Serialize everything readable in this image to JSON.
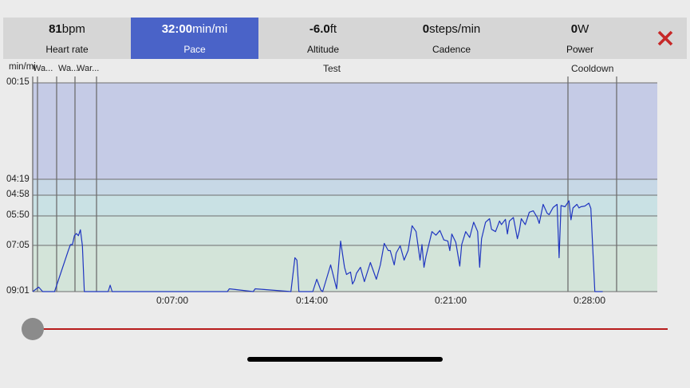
{
  "metrics": [
    {
      "value": "81",
      "unit": "bpm",
      "label": "Heart rate"
    },
    {
      "value": "32:00",
      "unit": "min/mi",
      "label": "Pace"
    },
    {
      "value": "-6.0",
      "unit": "ft",
      "label": "Altitude"
    },
    {
      "value": "0",
      "unit": "steps/min",
      "label": "Cadence"
    },
    {
      "value": "0",
      "unit": "W",
      "label": "Power"
    }
  ],
  "active_metric": "Pace",
  "close_icon": "close-x-icon",
  "colors": {
    "accent": "#4a63c8",
    "close": "#c62828",
    "line": "#1f35c0",
    "zone_top": "#c5cbe6",
    "zone_mid": "#c9e1e4",
    "zone_bottom": "#d3e4d9",
    "slider_track": "#b71c1c"
  },
  "chart": {
    "unit_label": "min/mi",
    "segment_labels": [
      "Wa...",
      "Wa...",
      "War...",
      "Test",
      "Cooldown"
    ],
    "y_ticks": [
      "00:15",
      "04:19",
      "04:58",
      "05:50",
      "07:05",
      "09:01"
    ],
    "x_ticks": [
      "0:07:00",
      "0:14:00",
      "0:21:00",
      "0:28:00"
    ]
  },
  "chart_data": {
    "type": "line",
    "ylabel": "min/mi",
    "y_axis_inverted": true,
    "y_ticks": [
      "00:15",
      "04:19",
      "04:58",
      "05:50",
      "07:05",
      "09:01"
    ],
    "x_ticks": [
      "0:07:00",
      "0:14:00",
      "0:21:00",
      "0:28:00"
    ],
    "xlim": [
      "0:00:00",
      "0:31:30"
    ],
    "segments": [
      "Warm-up",
      "Wa...",
      "Wa...",
      "War...",
      "Test",
      "Cooldown"
    ],
    "series": [
      {
        "x_minutes": [
          0,
          0.3,
          0.5,
          1.1,
          1.8,
          1.9,
          2.0,
          2.1,
          2.2,
          2.3,
          2.4,
          2.5,
          2.6,
          2.7,
          2.8,
          3.0,
          3.1,
          3.8,
          3.9,
          4.0,
          4.1,
          9.8,
          9.9,
          11.1,
          11.2,
          13.0,
          13.2,
          13.3,
          13.4,
          14.1,
          14.3,
          14.5,
          14.6,
          15.0,
          15.3,
          15.5,
          15.7,
          15.8,
          16.0,
          16.1,
          16.2,
          16.3,
          16.5,
          16.7,
          17.0,
          17.3,
          17.5,
          17.7,
          17.9,
          18.0,
          18.2,
          18.3,
          18.5,
          18.7,
          18.9,
          19.1,
          19.3,
          19.5,
          19.6,
          19.7,
          19.8,
          19.9,
          20.1,
          20.3,
          20.5,
          20.7,
          20.9,
          21.0,
          21.1,
          21.3,
          21.5,
          21.6,
          21.8,
          22.0,
          22.2,
          22.4,
          22.5,
          22.6,
          22.8,
          23.0,
          23.1,
          23.3,
          23.5,
          23.6,
          23.8,
          23.9,
          24.0,
          24.2,
          24.4,
          24.5,
          24.6,
          24.8,
          25.0,
          25.2,
          25.4,
          25.5,
          25.7,
          25.9,
          26.0,
          26.2,
          26.4,
          26.5,
          26.6,
          26.8,
          27.0,
          27.1,
          27.2,
          27.4,
          27.5,
          27.6,
          27.8,
          28.0,
          28.1,
          28.3,
          28.5,
          28.6,
          28.7
        ],
        "y_minutes": [
          9.02,
          8.83,
          9.02,
          9.02,
          7.28,
          7.05,
          7.05,
          6.67,
          6.58,
          6.67,
          6.42,
          7.1,
          9.02,
          9.02,
          9.02,
          9.02,
          9.02,
          9.02,
          8.75,
          9.02,
          9.02,
          9.02,
          8.9,
          9.02,
          8.9,
          9.02,
          7.6,
          7.7,
          9.02,
          9.02,
          8.5,
          8.95,
          9.02,
          7.9,
          8.9,
          6.9,
          8.0,
          8.3,
          8.2,
          8.7,
          8.55,
          8.25,
          8.0,
          8.6,
          7.8,
          8.5,
          7.9,
          7.0,
          7.3,
          7.3,
          7.9,
          7.4,
          7.1,
          7.7,
          7.3,
          6.25,
          6.5,
          7.7,
          7.05,
          8.0,
          7.55,
          7.2,
          6.5,
          6.65,
          6.45,
          6.85,
          6.9,
          7.3,
          6.6,
          6.95,
          7.95,
          7.05,
          6.5,
          6.75,
          6.1,
          6.5,
          8.0,
          6.8,
          6.1,
          5.95,
          6.4,
          6.5,
          6.05,
          6.2,
          5.98,
          6.6,
          6.05,
          5.9,
          6.8,
          6.45,
          5.95,
          6.2,
          5.68,
          5.62,
          5.9,
          6.15,
          5.35,
          5.72,
          5.78,
          5.48,
          5.35,
          7.6,
          5.4,
          5.45,
          5.2,
          6.0,
          5.5,
          5.35,
          5.5,
          5.45,
          5.42,
          5.3,
          5.52,
          9.02,
          9.02,
          9.02,
          9.02
        ]
      }
    ]
  }
}
